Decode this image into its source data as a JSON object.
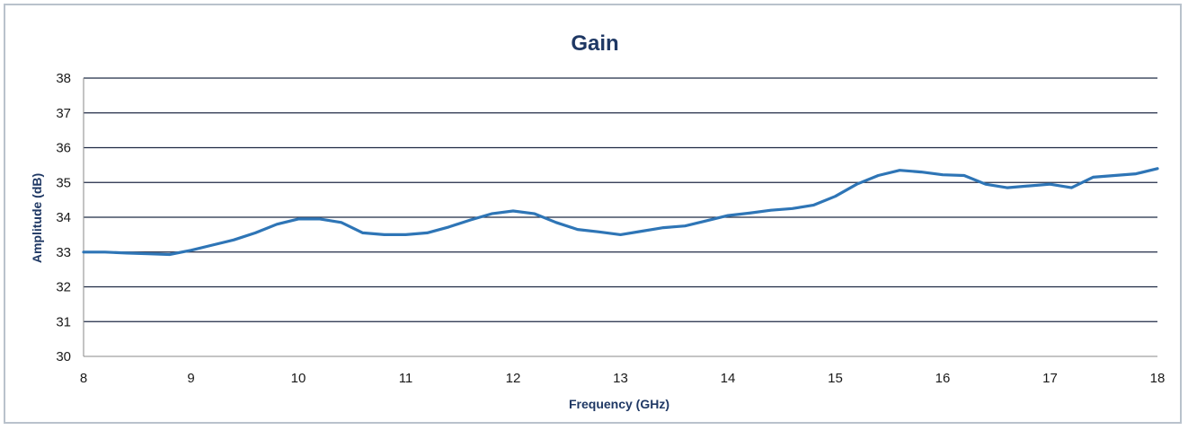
{
  "chart_data": {
    "type": "line",
    "title": "Gain",
    "xlabel": "Frequency (GHz)",
    "ylabel": "Amplitude (dB)",
    "xlim": [
      8,
      18
    ],
    "ylim": [
      30,
      38
    ],
    "x_ticks": [
      "8",
      "9",
      "10",
      "11",
      "12",
      "13",
      "14",
      "15",
      "16",
      "17",
      "18"
    ],
    "y_ticks": [
      "30",
      "31",
      "32",
      "33",
      "34",
      "35",
      "36",
      "37",
      "38"
    ],
    "grid": true,
    "legend": "none",
    "series": [
      {
        "color": "#2e75b6",
        "x": [
          8.0,
          8.2,
          8.4,
          8.6,
          8.8,
          9.0,
          9.2,
          9.4,
          9.6,
          9.8,
          10.0,
          10.2,
          10.4,
          10.6,
          10.8,
          11.0,
          11.2,
          11.4,
          11.6,
          11.8,
          12.0,
          12.2,
          12.4,
          12.6,
          12.8,
          13.0,
          13.2,
          13.4,
          13.6,
          13.8,
          14.0,
          14.2,
          14.4,
          14.6,
          14.8,
          15.0,
          15.2,
          15.4,
          15.6,
          15.8,
          16.0,
          16.2,
          16.4,
          16.6,
          16.8,
          17.0,
          17.2,
          17.4,
          17.6,
          17.8,
          18.0
        ],
        "y": [
          33.0,
          33.0,
          32.97,
          32.95,
          32.93,
          33.05,
          33.2,
          33.35,
          33.55,
          33.8,
          33.95,
          33.95,
          33.85,
          33.55,
          33.5,
          33.5,
          33.55,
          33.72,
          33.92,
          34.1,
          34.18,
          34.1,
          33.85,
          33.65,
          33.58,
          33.5,
          33.6,
          33.7,
          33.75,
          33.9,
          34.05,
          34.12,
          34.2,
          34.25,
          34.35,
          34.6,
          34.95,
          35.2,
          35.35,
          35.3,
          35.22,
          35.2,
          34.95,
          34.85,
          34.9,
          34.95,
          34.85,
          35.15,
          35.2,
          35.25,
          35.4
        ]
      }
    ]
  }
}
